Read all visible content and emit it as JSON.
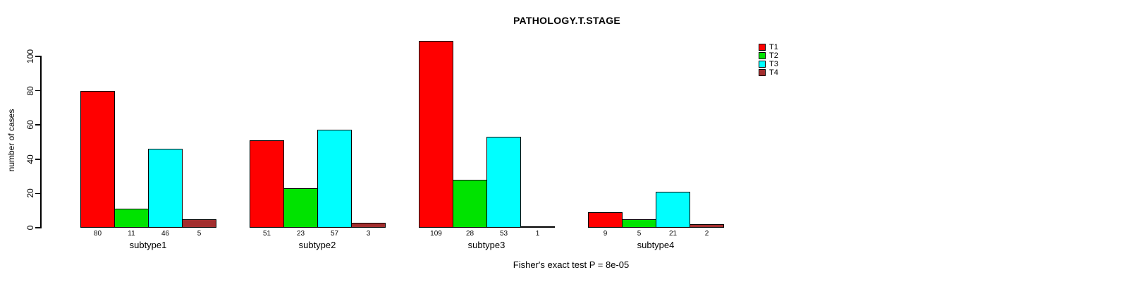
{
  "header": {
    "title": "PATHOLOGY.T.STAGE"
  },
  "y_axis": {
    "label": "number of cases",
    "ticks": [
      0,
      20,
      40,
      60,
      80,
      100
    ]
  },
  "footer": {
    "caption": "Fisher's exact test P = 8e-05"
  },
  "legend": {
    "items": [
      {
        "label": "T1",
        "color": "#ff0000"
      },
      {
        "label": "T2",
        "color": "#00e300"
      },
      {
        "label": "T3",
        "color": "#00ffff"
      },
      {
        "label": "T4",
        "color": "#a32e2e"
      }
    ]
  },
  "chart_data": {
    "type": "bar",
    "title": "PATHOLOGY.T.STAGE",
    "xlabel": "",
    "ylabel": "number of cases",
    "ylim": [
      0,
      100
    ],
    "yticks": [
      0,
      20,
      40,
      60,
      80,
      100
    ],
    "grid": false,
    "legend_position": "top-right",
    "bar_value_labels_shown": true,
    "annotation": "Fisher's exact test P = 8e-05",
    "categories": [
      "subtype1",
      "subtype2",
      "subtype3",
      "subtype4"
    ],
    "series": [
      {
        "name": "T1",
        "color": "#ff0000",
        "values": [
          80,
          51,
          109,
          9
        ]
      },
      {
        "name": "T2",
        "color": "#00e300",
        "values": [
          11,
          23,
          28,
          5
        ]
      },
      {
        "name": "T3",
        "color": "#00ffff",
        "values": [
          46,
          57,
          53,
          21
        ]
      },
      {
        "name": "T4",
        "color": "#a32e2e",
        "values": [
          5,
          3,
          1,
          2
        ]
      }
    ]
  }
}
